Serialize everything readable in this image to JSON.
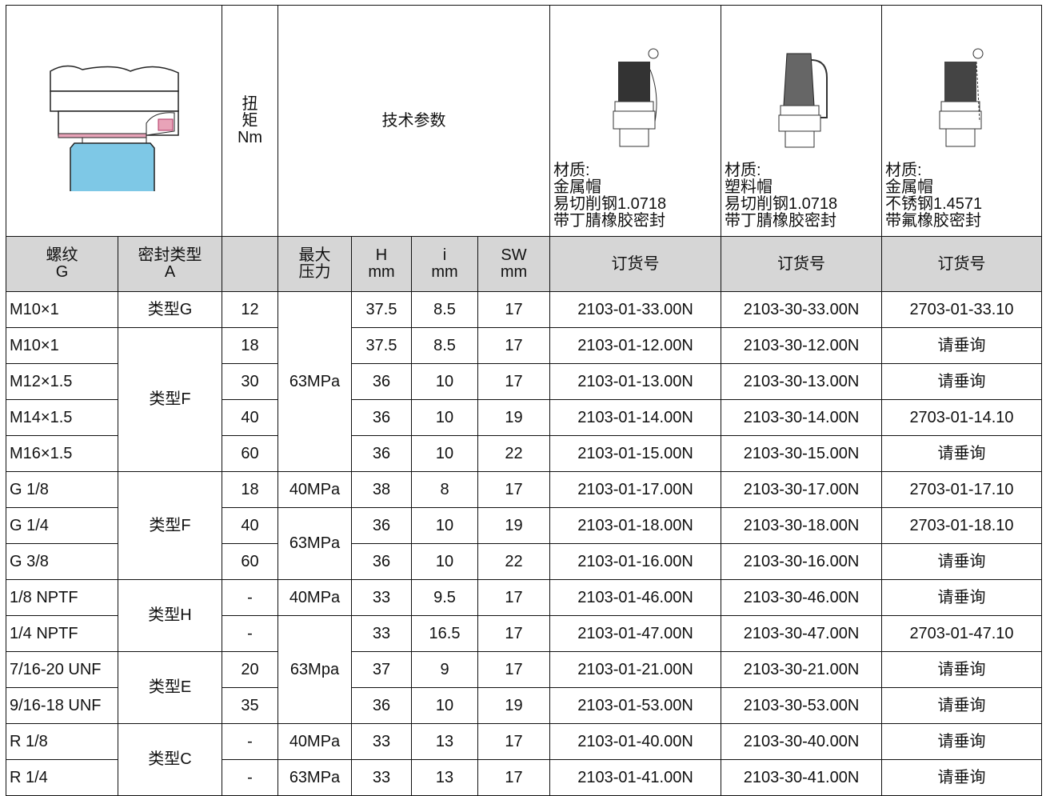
{
  "header": {
    "torque": [
      "扭",
      "矩",
      "Nm"
    ],
    "tech_params": "技术参数",
    "products": [
      {
        "lines": [
          "材质:",
          "金属帽",
          "易切削钢1.0718",
          "带丁腈橡胶密封"
        ]
      },
      {
        "lines": [
          "材质:",
          "塑料帽",
          "易切削钢1.0718",
          "带丁腈橡胶密封"
        ]
      },
      {
        "lines": [
          "材质:",
          "金属帽",
          "不锈钢1.4571",
          "带氟橡胶密封"
        ]
      }
    ]
  },
  "subheader": {
    "thread": [
      "螺纹",
      "G"
    ],
    "seal": [
      "密封类型",
      "A"
    ],
    "pressure": [
      "最大",
      "压力"
    ],
    "h": [
      "H",
      "mm"
    ],
    "i": [
      "i",
      "mm"
    ],
    "sw": [
      "SW",
      "mm"
    ],
    "order": [
      "订货号",
      "订货号",
      "订货号"
    ]
  },
  "table": {
    "rows": [
      [
        "M10×1",
        "类型G",
        "12",
        "63MPa",
        "37.5",
        "8.5",
        "17",
        "2103-01-33.00N",
        "2103-30-33.00N",
        "2703-01-33.10"
      ],
      [
        "M10×1",
        "类型F",
        "18",
        null,
        "37.5",
        "8.5",
        "17",
        "2103-01-12.00N",
        "2103-30-12.00N",
        "请垂询"
      ],
      [
        "M12×1.5",
        null,
        "30",
        null,
        "36",
        "10",
        "17",
        "2103-01-13.00N",
        "2103-30-13.00N",
        "请垂询"
      ],
      [
        "M14×1.5",
        null,
        "40",
        null,
        "36",
        "10",
        "19",
        "2103-01-14.00N",
        "2103-30-14.00N",
        "2703-01-14.10"
      ],
      [
        "M16×1.5",
        null,
        "60",
        null,
        "36",
        "10",
        "22",
        "2103-01-15.00N",
        "2103-30-15.00N",
        "请垂询"
      ],
      [
        "G 1/8",
        "类型F",
        "18",
        "40MPa",
        "38",
        "8",
        "17",
        "2103-01-17.00N",
        "2103-30-17.00N",
        "2703-01-17.10"
      ],
      [
        "G 1/4",
        null,
        "40",
        "63MPa",
        "36",
        "10",
        "19",
        "2103-01-18.00N",
        "2103-30-18.00N",
        "2703-01-18.10"
      ],
      [
        "G 3/8",
        null,
        "60",
        null,
        "36",
        "10",
        "22",
        "2103-01-16.00N",
        "2103-30-16.00N",
        "请垂询"
      ],
      [
        "1/8 NPTF",
        "类型H",
        "-",
        "40MPa",
        "33",
        "9.5",
        "17",
        "2103-01-46.00N",
        "2103-30-46.00N",
        "请垂询"
      ],
      [
        "1/4 NPTF",
        null,
        "-",
        "63Mpa",
        "33",
        "16.5",
        "17",
        "2103-01-47.00N",
        "2103-30-47.00N",
        "2703-01-47.10"
      ],
      [
        "7/16-20 UNF",
        "类型E",
        "20",
        null,
        "37",
        "9",
        "17",
        "2103-01-21.00N",
        "2103-30-21.00N",
        "请垂询"
      ],
      [
        "9/16-18 UNF",
        null,
        "35",
        null,
        "36",
        "10",
        "19",
        "2103-01-53.00N",
        "2103-30-53.00N",
        "请垂询"
      ],
      [
        "R 1/8",
        "类型C",
        "-",
        "40MPa",
        "33",
        "13",
        "17",
        "2103-01-40.00N",
        "2103-30-40.00N",
        "请垂询"
      ],
      [
        "R 1/4",
        null,
        "-",
        "63MPa",
        "33",
        "13",
        "17",
        "2103-01-41.00N",
        "2103-30-41.00N",
        "请垂询"
      ]
    ]
  }
}
